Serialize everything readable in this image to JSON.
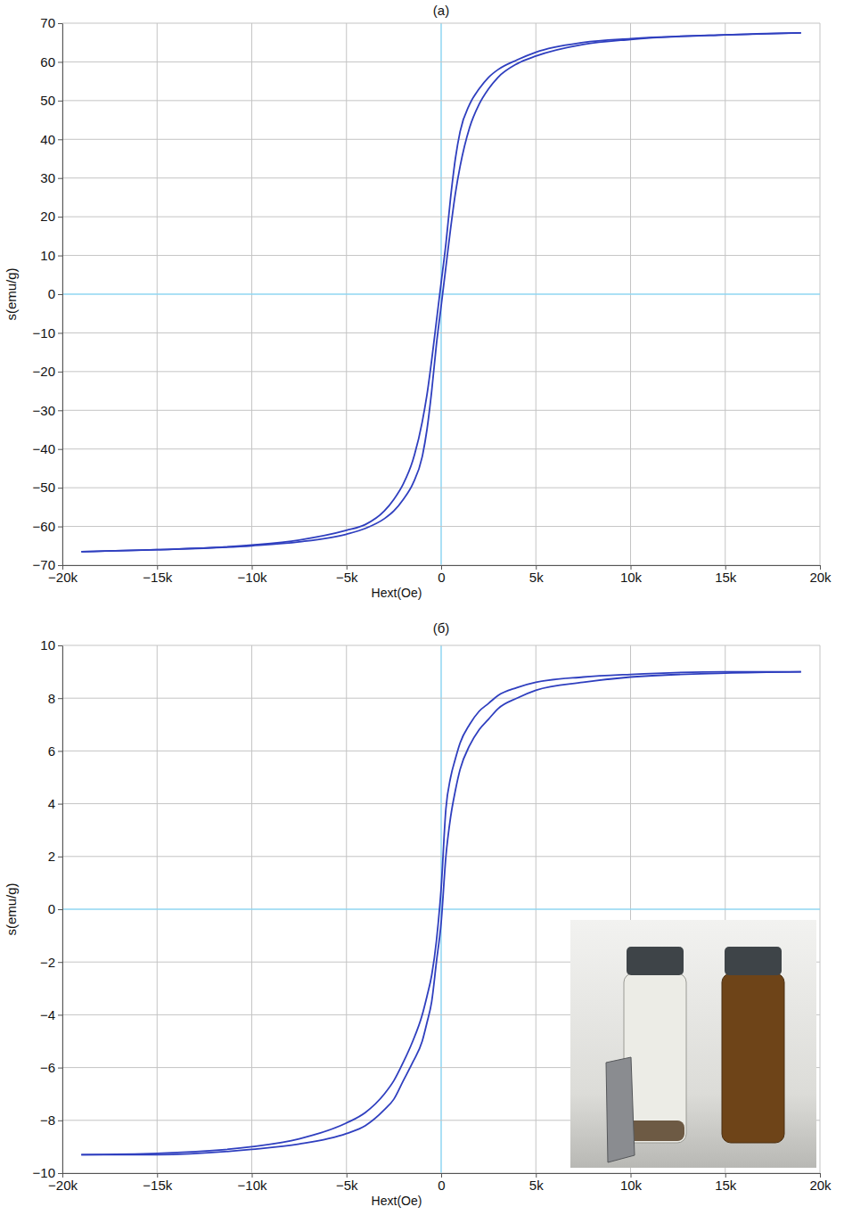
{
  "chart_data": [
    {
      "type": "line",
      "title": "(a)",
      "xlabel": "Hext(Oe)",
      "ylabel": "s(emu/g)",
      "x": [
        -19000,
        -15000,
        -10000,
        -7500,
        -5000,
        -4000,
        -3000,
        -2500,
        -2000,
        -1500,
        -1000,
        -750,
        -500,
        -250,
        0,
        250,
        500,
        750,
        1000,
        1500,
        2000,
        2500,
        3000,
        4000,
        5000,
        7500,
        10000,
        15000,
        19000
      ],
      "series": [
        {
          "color": "#2f3fbf",
          "values": [
            -66.5,
            -66,
            -64.8,
            -63.5,
            -61,
            -59.5,
            -56,
            -53,
            -49,
            -43,
            -33,
            -26,
            -17,
            -7,
            3,
            13,
            25,
            35,
            42,
            49,
            53,
            56,
            58,
            60.5,
            62.5,
            65,
            66,
            67,
            67.5
          ]
        },
        {
          "color": "#2f3fbf",
          "values": [
            -66.5,
            -66,
            -65,
            -64,
            -62,
            -60.5,
            -58,
            -56,
            -53,
            -49,
            -42,
            -35,
            -25,
            -13,
            -3,
            7,
            17,
            26,
            33,
            43,
            49,
            53,
            56,
            59.5,
            61.5,
            64.5,
            65.8,
            67,
            67.5
          ]
        }
      ],
      "xlim": [
        -20000,
        20000
      ],
      "xticks": [
        {
          "value": -20000,
          "label": "−20k"
        },
        {
          "value": -15000,
          "label": "−15k"
        },
        {
          "value": -10000,
          "label": "−10k"
        },
        {
          "value": -5000,
          "label": "−5k"
        },
        0,
        {
          "value": 5000,
          "label": "5k"
        },
        {
          "value": 10000,
          "label": "10k"
        },
        {
          "value": 15000,
          "label": "15k"
        },
        {
          "value": 20000,
          "label": "20k"
        }
      ],
      "ylim": [
        -70,
        70
      ],
      "yticks": [
        {
          "value": -70,
          "label": "−70"
        },
        {
          "value": -60,
          "label": "−60"
        },
        {
          "value": -50,
          "label": "−50"
        },
        {
          "value": -40,
          "label": "−40"
        },
        {
          "value": -30,
          "label": "−30"
        },
        {
          "value": -20,
          "label": "−20"
        },
        {
          "value": -10,
          "label": "−10"
        },
        0,
        10,
        20,
        30,
        40,
        50,
        60,
        70
      ],
      "grid": true
    },
    {
      "type": "line",
      "title": "(б)",
      "xlabel": "Hext(Oe)",
      "ylabel": "s(emu/g)",
      "x": [
        -19000,
        -15000,
        -10000,
        -7500,
        -5000,
        -4000,
        -3000,
        -2500,
        -2000,
        -1500,
        -1000,
        -750,
        -500,
        -250,
        0,
        250,
        500,
        750,
        1000,
        1500,
        2000,
        2500,
        3000,
        4000,
        5000,
        7500,
        10000,
        15000,
        19000
      ],
      "series": [
        {
          "color": "#2f3fbf",
          "values": [
            -9.3,
            -9.25,
            -9.0,
            -8.7,
            -8.1,
            -7.7,
            -7.0,
            -6.5,
            -5.8,
            -5.0,
            -4.0,
            -3.3,
            -2.5,
            -1.2,
            0.8,
            3.8,
            5.0,
            5.7,
            6.3,
            7.0,
            7.5,
            7.8,
            8.1,
            8.4,
            8.6,
            8.8,
            8.9,
            9.0,
            9.0
          ]
        },
        {
          "color": "#2f3fbf",
          "values": [
            -9.3,
            -9.3,
            -9.1,
            -8.9,
            -8.5,
            -8.2,
            -7.6,
            -7.2,
            -6.5,
            -5.8,
            -5.0,
            -4.3,
            -3.5,
            -2.0,
            -0.5,
            2.0,
            3.5,
            4.5,
            5.3,
            6.2,
            6.8,
            7.2,
            7.6,
            8.0,
            8.3,
            8.6,
            8.8,
            8.95,
            9.0
          ]
        }
      ],
      "xlim": [
        -20000,
        20000
      ],
      "xticks": [
        {
          "value": -20000,
          "label": "−20k"
        },
        {
          "value": -15000,
          "label": "−15k"
        },
        {
          "value": -10000,
          "label": "−10k"
        },
        {
          "value": -5000,
          "label": "−5k"
        },
        0,
        {
          "value": 5000,
          "label": "5k"
        },
        {
          "value": 10000,
          "label": "10k"
        },
        {
          "value": 15000,
          "label": "15k"
        },
        {
          "value": 20000,
          "label": "20k"
        }
      ],
      "ylim": [
        -10,
        10
      ],
      "yticks": [
        {
          "value": -10,
          "label": "−10"
        },
        {
          "value": -8,
          "label": "−8"
        },
        {
          "value": -6,
          "label": "−6"
        },
        {
          "value": -4,
          "label": "−4"
        },
        {
          "value": -2,
          "label": "−2"
        },
        0,
        2,
        4,
        6,
        8,
        10
      ],
      "grid": true
    }
  ]
}
